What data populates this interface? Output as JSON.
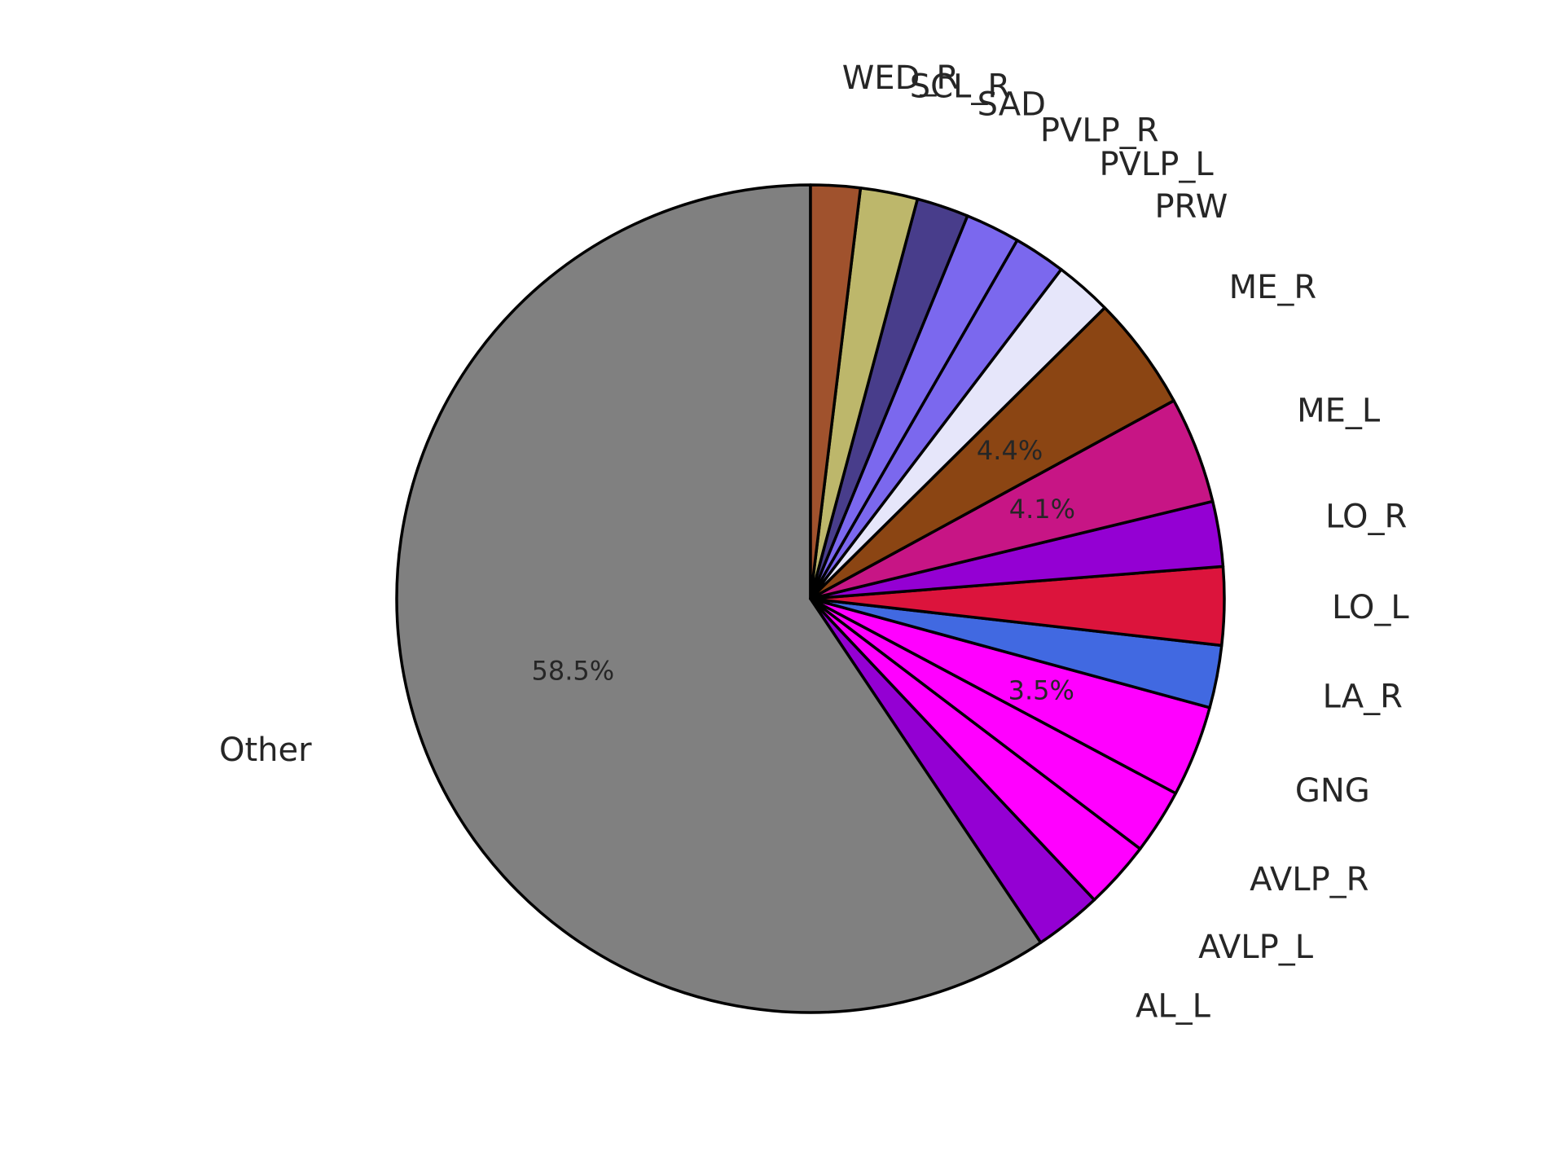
{
  "chart_data": {
    "type": "pie",
    "start_angle_deg": 90,
    "direction": "counterclockwise",
    "slices": [
      {
        "label": "Other",
        "value": 58.5,
        "color": "#808080",
        "pct_text": "58.5%"
      },
      {
        "label": "AL_L",
        "value": 2.6,
        "color": "#9400D3",
        "pct_text": ""
      },
      {
        "label": "AVLP_L",
        "value": 2.6,
        "color": "#FF00FF",
        "pct_text": ""
      },
      {
        "label": "AVLP_R",
        "value": 2.5,
        "color": "#FF00FF",
        "pct_text": ""
      },
      {
        "label": "GNG",
        "value": 3.5,
        "color": "#FF00FF",
        "pct_text": "3.5%"
      },
      {
        "label": "LA_R",
        "value": 2.4,
        "color": "#4169E1",
        "pct_text": ""
      },
      {
        "label": "LO_L",
        "value": 3.0,
        "color": "#DC143C",
        "pct_text": ""
      },
      {
        "label": "LO_R",
        "value": 2.5,
        "color": "#9400D3",
        "pct_text": ""
      },
      {
        "label": "ME_L",
        "value": 4.1,
        "color": "#C71585",
        "pct_text": "4.1%"
      },
      {
        "label": "ME_R",
        "value": 4.4,
        "color": "#8B4513",
        "pct_text": "4.4%"
      },
      {
        "label": "PRW",
        "value": 2.2,
        "color": "#E6E6FA",
        "pct_text": ""
      },
      {
        "label": "PVLP_L",
        "value": 2.0,
        "color": "#7B68EE",
        "pct_text": ""
      },
      {
        "label": "PVLP_R",
        "value": 2.1,
        "color": "#7B68EE",
        "pct_text": ""
      },
      {
        "label": "SAD",
        "value": 2.0,
        "color": "#483D8B",
        "pct_text": ""
      },
      {
        "label": "SCL_R",
        "value": 2.2,
        "color": "#BDB76B",
        "pct_text": ""
      },
      {
        "label": "WED_R",
        "value": 1.9,
        "color": "#A0522D",
        "pct_text": ""
      }
    ]
  }
}
